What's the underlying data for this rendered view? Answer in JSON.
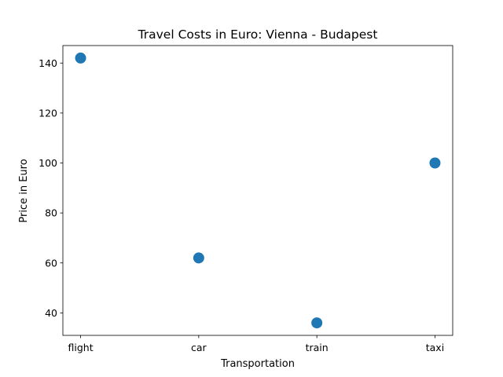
{
  "chart_data": {
    "type": "scatter",
    "title": "Travel Costs in Euro: Vienna - Budapest",
    "xlabel": "Transportation",
    "ylabel": "Price in Euro",
    "categories": [
      "flight",
      "car",
      "train",
      "taxi"
    ],
    "values": [
      142,
      62,
      36,
      100
    ],
    "ylim": [
      31,
      147
    ],
    "yticks": [
      40,
      60,
      80,
      100,
      120,
      140
    ],
    "grid": false,
    "point_color": "#1f77b4"
  }
}
